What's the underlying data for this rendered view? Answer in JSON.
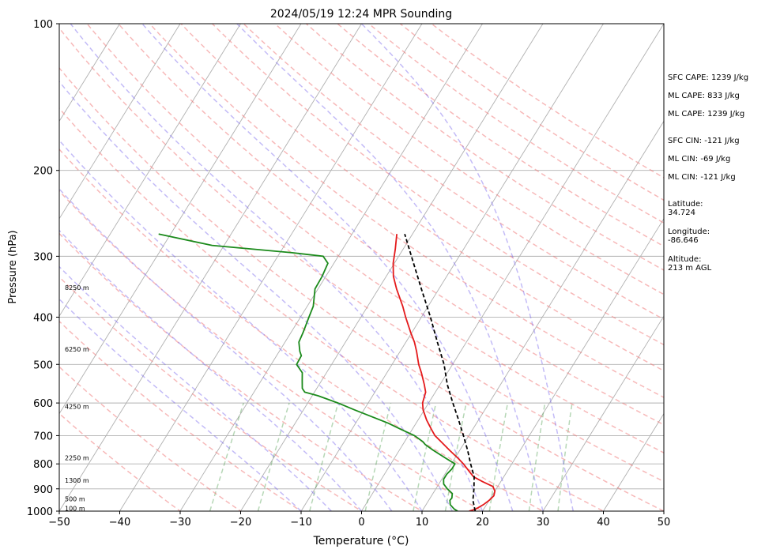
{
  "chart_data": {
    "type": "line",
    "title": "2024/05/19 12:24 MPR Sounding",
    "xlabel": "Temperature (°C)",
    "ylabel": "Pressure (hPa)",
    "xlim": [
      -50,
      50
    ],
    "ylim": [
      1000,
      100
    ],
    "y_scale": "log",
    "grid": true,
    "x_ticks": [
      -50,
      -40,
      -30,
      -20,
      -10,
      0,
      10,
      20,
      30,
      40,
      50
    ],
    "y_ticks": [
      1000,
      900,
      800,
      700,
      600,
      500,
      400,
      300,
      200,
      100
    ],
    "skew_temperatures": [
      -150,
      -140,
      -130,
      -120,
      -110,
      -100,
      -90,
      -80,
      -70,
      -60,
      -50,
      -40,
      -30,
      -20,
      -10,
      0,
      10,
      20,
      30,
      40,
      50
    ],
    "dry_adiabat_temps": [
      -30,
      -20,
      -10,
      0,
      10,
      20,
      30,
      40,
      50,
      60,
      70,
      80,
      90,
      100,
      110,
      120,
      130,
      140,
      150,
      160,
      170,
      180
    ],
    "moist_adiabat_temps": [
      -10,
      -5,
      0,
      5,
      10,
      15,
      20,
      25,
      30,
      35
    ],
    "mixing_ratios": [
      0.5,
      1,
      2,
      4,
      7,
      10,
      16,
      24,
      32
    ],
    "height_labels": [
      {
        "label": "100 m",
        "pressure": 987
      },
      {
        "label": "500 m",
        "pressure": 943
      },
      {
        "label": "1300 m",
        "pressure": 864
      },
      {
        "label": "2250 m",
        "pressure": 777
      },
      {
        "label": "4250 m",
        "pressure": 610
      },
      {
        "label": "6250 m",
        "pressure": 465
      },
      {
        "label": "8250 m",
        "pressure": 348
      }
    ],
    "series": [
      {
        "key": "temperature",
        "color": "#e41a1c",
        "dashed": false,
        "points": [
          [
            1000,
            17.8
          ],
          [
            990,
            18.7
          ],
          [
            970,
            19.5
          ],
          [
            950,
            20.0
          ],
          [
            930,
            20.3
          ],
          [
            910,
            20.0
          ],
          [
            890,
            19.2
          ],
          [
            870,
            17.0
          ],
          [
            850,
            15.0
          ],
          [
            830,
            13.8
          ],
          [
            800,
            12.0
          ],
          [
            780,
            10.6
          ],
          [
            750,
            8.3
          ],
          [
            720,
            6.0
          ],
          [
            700,
            4.4
          ],
          [
            680,
            3.2
          ],
          [
            650,
            1.4
          ],
          [
            620,
            -0.2
          ],
          [
            600,
            -1.0
          ],
          [
            570,
            -1.6
          ],
          [
            550,
            -2.6
          ],
          [
            520,
            -4.3
          ],
          [
            500,
            -5.6
          ],
          [
            470,
            -7.3
          ],
          [
            450,
            -8.6
          ],
          [
            430,
            -10.2
          ],
          [
            400,
            -12.6
          ],
          [
            380,
            -14.2
          ],
          [
            350,
            -17.0
          ],
          [
            330,
            -18.8
          ],
          [
            310,
            -20.2
          ],
          [
            290,
            -21.3
          ],
          [
            270,
            -22.6
          ]
        ]
      },
      {
        "key": "dewpoint",
        "color": "#1b8a1b",
        "dashed": false,
        "points": [
          [
            1000,
            15.9
          ],
          [
            990,
            15.1
          ],
          [
            970,
            14.0
          ],
          [
            950,
            13.5
          ],
          [
            940,
            13.6
          ],
          [
            920,
            13.2
          ],
          [
            900,
            11.9
          ],
          [
            880,
            10.8
          ],
          [
            860,
            10.3
          ],
          [
            840,
            10.3
          ],
          [
            820,
            10.6
          ],
          [
            800,
            10.6
          ],
          [
            780,
            8.6
          ],
          [
            750,
            5.6
          ],
          [
            730,
            3.7
          ],
          [
            720,
            3.0
          ],
          [
            700,
            1.0
          ],
          [
            680,
            -1.8
          ],
          [
            660,
            -4.6
          ],
          [
            640,
            -8.0
          ],
          [
            620,
            -11.5
          ],
          [
            600,
            -15.0
          ],
          [
            580,
            -19.0
          ],
          [
            570,
            -21.6
          ],
          [
            560,
            -22.4
          ],
          [
            540,
            -23.2
          ],
          [
            520,
            -24.0
          ],
          [
            500,
            -25.8
          ],
          [
            480,
            -25.9
          ],
          [
            470,
            -26.6
          ],
          [
            450,
            -27.7
          ],
          [
            430,
            -28.0
          ],
          [
            410,
            -28.4
          ],
          [
            400,
            -28.6
          ],
          [
            380,
            -29.0
          ],
          [
            350,
            -30.5
          ],
          [
            330,
            -30.6
          ],
          [
            310,
            -31.0
          ],
          [
            300,
            -32.5
          ],
          [
            295,
            -38.0
          ],
          [
            285,
            -52.0
          ],
          [
            270,
            -62.0
          ]
        ]
      },
      {
        "key": "parcel",
        "color": "#000000",
        "dashed": true,
        "points": [
          [
            1000,
            18.8
          ],
          [
            950,
            17.3
          ],
          [
            900,
            16.3
          ],
          [
            850,
            15.1
          ],
          [
            800,
            13.2
          ],
          [
            750,
            11.3
          ],
          [
            700,
            9.1
          ],
          [
            650,
            6.7
          ],
          [
            600,
            4.0
          ],
          [
            550,
            1.2
          ],
          [
            500,
            -1.4
          ],
          [
            450,
            -4.8
          ],
          [
            400,
            -8.5
          ],
          [
            350,
            -12.9
          ],
          [
            300,
            -17.9
          ],
          [
            270,
            -21.3
          ]
        ]
      }
    ]
  },
  "annotations": {
    "sfc_cape": "SFC CAPE: 1239 J/kg",
    "ml_cape_1": "ML CAPE: 833 J/kg",
    "ml_cape_2": "ML CAPE: 1239 J/kg",
    "sfc_cin": "SFC CIN: -121 J/kg",
    "ml_cin_1": "ML CIN: -69 J/kg",
    "ml_cin_2": "ML CIN: -121 J/kg",
    "latitude": "Latitude:\n34.724",
    "longitude": "Longitude:\n-86.646",
    "altitude": "Altitude:\n213 m AGL"
  }
}
